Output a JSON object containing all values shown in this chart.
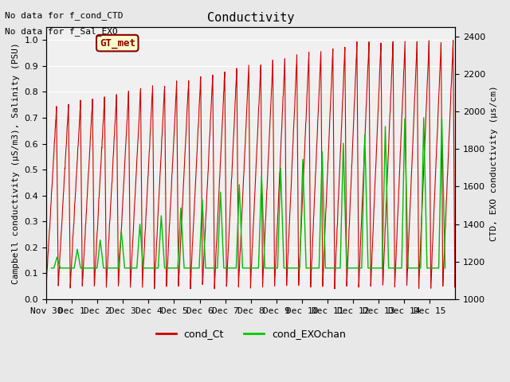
{
  "title": "Conductivity",
  "ylabel_left": "Campbell conductivity (µS/m3), Salinity (PSU)",
  "ylabel_right": "CTD, EXO conductivity (µs/cm)",
  "ylim_left": [
    0.0,
    1.05
  ],
  "ylim_right": [
    1000,
    2450
  ],
  "annotations": [
    "No data for f_cond_CTD",
    "No data for f_Sal_EXO"
  ],
  "box_label": "GT_met",
  "legend_entries": [
    "cond_Ct",
    "cond_EXOchan"
  ],
  "legend_colors": [
    "#cc0000",
    "#00cc00"
  ],
  "line_color_red": "#cc0000",
  "line_color_green": "#00bb00",
  "background_color": "#e8e8e8",
  "plot_bg_color": "#f0f0f0",
  "xticklabels": [
    "Nov 30",
    "Dec 1",
    "Dec 2",
    "Dec 3",
    "Dec 4",
    "Dec 5",
    "Dec 6",
    "Dec 7",
    "Dec 8",
    "Dec 9",
    "Dec 10",
    "Dec 11",
    "Dec 12",
    "Dec 13",
    "Dec 14",
    "Dec 15"
  ],
  "xtick_positions": [
    0,
    1,
    2,
    3,
    4,
    5,
    6,
    7,
    8,
    9,
    10,
    11,
    12,
    13,
    14,
    15
  ],
  "xlim": [
    0,
    16
  ],
  "red_peak_start": 0.74,
  "red_peak_end": 0.99,
  "red_trough": 0.05,
  "green_peak_start": 0.27,
  "green_peak_end": 0.65,
  "green_trough": 0.12
}
